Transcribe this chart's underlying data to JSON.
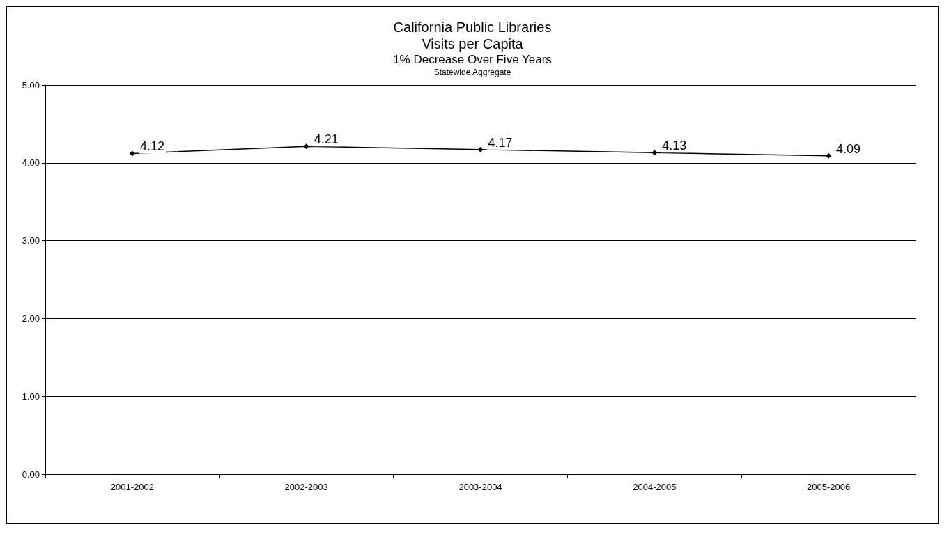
{
  "chart_data": {
    "type": "line",
    "title": "California Public Libraries\nVisits per Capita",
    "subtitle": "1% Decrease Over Five Years",
    "annotations": [
      "Statewide Aggregate"
    ],
    "categories": [
      "2001-2002",
      "2002-2003",
      "2003-2004",
      "2004-2005",
      "2005-2006"
    ],
    "series": [
      {
        "color": "#000000",
        "values": [
          4.12,
          4.21,
          4.17,
          4.13,
          4.09
        ]
      }
    ],
    "ylim": [
      0,
      5
    ],
    "yticks": [
      {
        "value": 0,
        "label": "0.00"
      },
      {
        "value": 1,
        "label": "1.00"
      },
      {
        "value": 2,
        "label": "2.00"
      },
      {
        "value": 3,
        "label": "3.00"
      },
      {
        "value": 4,
        "label": "4.00"
      },
      {
        "value": 5,
        "label": "5.00"
      }
    ],
    "grid": "y",
    "marker": "diamond",
    "line_style": "solid",
    "data_labels": true
  }
}
